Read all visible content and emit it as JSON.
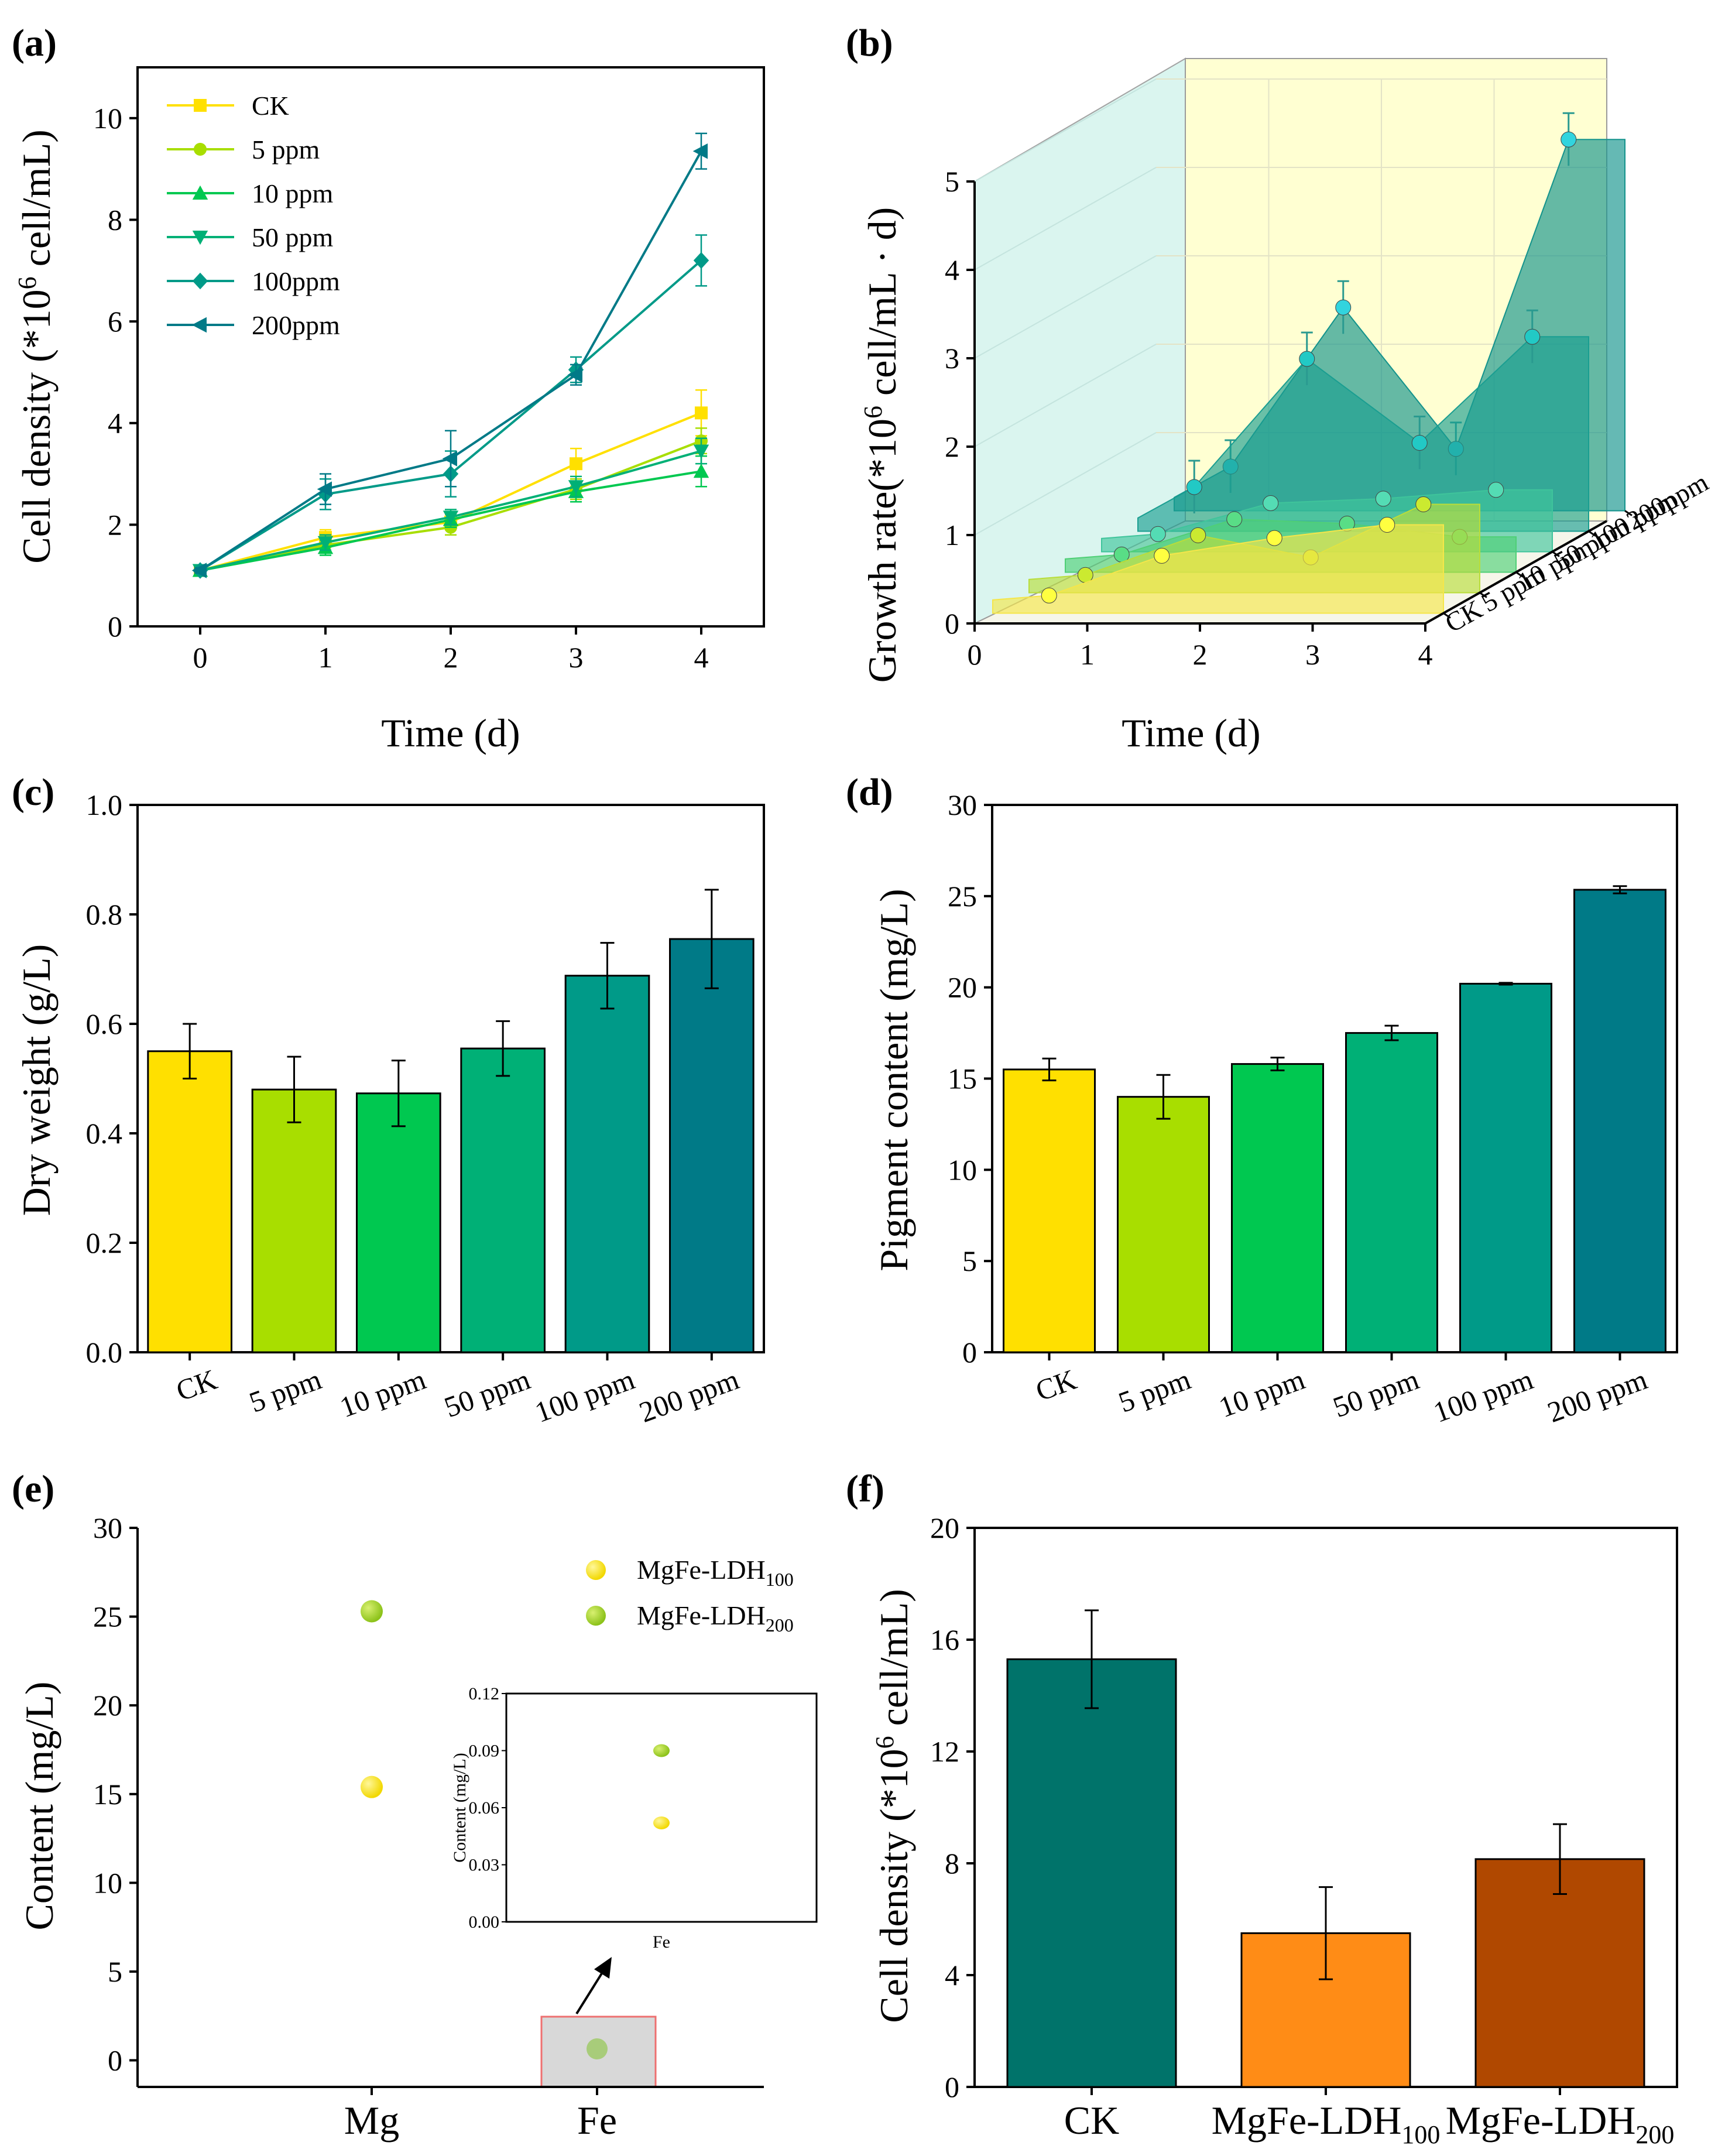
{
  "colors": {
    "CK": "#ffe000",
    "p5": "#a8de00",
    "p10": "#00c850",
    "p50": "#00b076",
    "p100": "#009a88",
    "p200": "#007a87",
    "f_ck": "#00736a",
    "f_100": "#ff8c16",
    "f_200": "#b04800"
  },
  "chart_data": [
    {
      "panel": "(a)",
      "type": "line",
      "xlabel": "Time (d)",
      "ylabel_parts": [
        "Cell density (*10",
        "6",
        " cell/mL)"
      ],
      "x": [
        0,
        1,
        2,
        3,
        4
      ],
      "xticks": [
        "0",
        "1",
        "2",
        "3",
        "4"
      ],
      "yticks": [
        "0",
        "2",
        "4",
        "6",
        "8",
        "10"
      ],
      "xlim": [
        -0.5,
        4.5
      ],
      "ylim": [
        0,
        11
      ],
      "series": [
        {
          "name": "CK",
          "marker": "square",
          "values": [
            1.1,
            1.75,
            2.05,
            3.2,
            4.2
          ],
          "err": [
            0.05,
            0.15,
            0.15,
            0.3,
            0.45
          ]
        },
        {
          "name": "5 ppm",
          "marker": "circle",
          "values": [
            1.1,
            1.6,
            1.95,
            2.7,
            3.65
          ],
          "err": [
            0.05,
            0.15,
            0.15,
            0.2,
            0.25
          ]
        },
        {
          "name": "10 ppm",
          "marker": "triangle-up",
          "values": [
            1.1,
            1.55,
            2.1,
            2.65,
            3.05
          ],
          "err": [
            0.05,
            0.15,
            0.15,
            0.2,
            0.3
          ]
        },
        {
          "name": "50 ppm",
          "marker": "triangle-down",
          "values": [
            1.1,
            1.65,
            2.15,
            2.75,
            3.45
          ],
          "err": [
            0.05,
            0.15,
            0.15,
            0.2,
            0.25
          ]
        },
        {
          "name": "100ppm",
          "marker": "diamond",
          "values": [
            1.1,
            2.6,
            3.0,
            5.05,
            7.2
          ],
          "err": [
            0.05,
            0.3,
            0.45,
            0.25,
            0.5
          ]
        },
        {
          "name": "200ppm",
          "marker": "triangle-left",
          "values": [
            1.1,
            2.7,
            3.3,
            4.95,
            9.35
          ],
          "err": [
            0.05,
            0.3,
            0.55,
            0.2,
            0.35
          ]
        }
      ]
    },
    {
      "panel": "(b)",
      "type": "area",
      "subtype": "3d-waterfall",
      "xlabel": "Time (d)",
      "ylabel_parts": [
        "Growth rate(*10",
        "6",
        " cell/mL · d)"
      ],
      "xticks": [
        "0",
        "1",
        "2",
        "3",
        "4"
      ],
      "yticks": [
        "0",
        "1",
        "2",
        "3",
        "4",
        "5"
      ],
      "depth_labels": [
        "CK",
        "5 ppm",
        "10 ppm",
        "50 ppm",
        "100 ppm",
        "200ppm"
      ],
      "x": [
        0.5,
        1.5,
        2.5,
        3.5
      ],
      "ylim": [
        0,
        5
      ],
      "series": [
        {
          "name": "CK",
          "values": [
            0.2,
            0.65,
            0.85,
            1.0
          ]
        },
        {
          "name": "5 ppm",
          "values": [
            0.2,
            0.65,
            0.4,
            1.0
          ]
        },
        {
          "name": "10 ppm",
          "values": [
            0.2,
            0.6,
            0.55,
            0.4
          ]
        },
        {
          "name": "50 ppm",
          "values": [
            0.2,
            0.55,
            0.6,
            0.7
          ]
        },
        {
          "name": "100ppm",
          "values": [
            0.5,
            1.95,
            1.0,
            2.2
          ]
        },
        {
          "name": "200ppm",
          "values": [
            0.5,
            2.3,
            0.7,
            4.2
          ]
        }
      ]
    },
    {
      "panel": "(c)",
      "type": "bar",
      "ylabel": "Dry weight (g/L)",
      "categories": [
        "CK",
        "5 ppm",
        "10 ppm",
        "50 ppm",
        "100 ppm",
        "200 ppm"
      ],
      "values": [
        0.55,
        0.48,
        0.473,
        0.555,
        0.688,
        0.755
      ],
      "err": [
        0.05,
        0.06,
        0.06,
        0.05,
        0.06,
        0.09
      ],
      "yticks": [
        "0.0",
        "0.2",
        "0.4",
        "0.6",
        "0.8",
        "1.0"
      ],
      "ylim": [
        0,
        1.0
      ]
    },
    {
      "panel": "(d)",
      "type": "bar",
      "ylabel": "Pigment content (mg/L)",
      "categories": [
        "CK",
        "5 ppm",
        "10 ppm",
        "50 ppm",
        "100 ppm",
        "200 ppm"
      ],
      "values": [
        15.5,
        14.0,
        15.8,
        17.5,
        20.2,
        25.35
      ],
      "err": [
        0.6,
        1.2,
        0.35,
        0.4,
        0.05,
        0.2
      ],
      "yticks": [
        "0",
        "5",
        "10",
        "15",
        "20",
        "25",
        "30"
      ],
      "ylim": [
        0,
        30
      ]
    },
    {
      "panel": "(e)",
      "type": "scatter",
      "ylabel": "Content (mg/L)",
      "categories": [
        "Mg",
        "Fe"
      ],
      "yticks": [
        "0",
        "5",
        "10",
        "15",
        "20",
        "25",
        "30"
      ],
      "ylim": [
        -1.5,
        30
      ],
      "series": [
        {
          "name_main": "MgFe-LDH",
          "name_sub": "100",
          "values": [
            15.4,
            0.052
          ]
        },
        {
          "name_main": "MgFe-LDH",
          "name_sub": "200",
          "values": [
            25.3,
            0.09
          ]
        }
      ],
      "inset": {
        "ylabel": "Content (mg/L)",
        "xtick": "Fe",
        "yticks": [
          "0.00",
          "0.03",
          "0.06",
          "0.09",
          "0.12"
        ],
        "ylim": [
          0,
          0.12
        ]
      }
    },
    {
      "panel": "(f)",
      "type": "bar",
      "ylabel_parts": [
        "Cell density (*10",
        "6",
        " cell/mL)"
      ],
      "categories": [
        {
          "main": "CK",
          "sub": ""
        },
        {
          "main": "MgFe-LDH",
          "sub": "100"
        },
        {
          "main": "MgFe-LDH",
          "sub": "200"
        }
      ],
      "values": [
        15.3,
        5.5,
        8.15
      ],
      "err": [
        1.75,
        1.65,
        1.25
      ],
      "yticks": [
        "0",
        "4",
        "8",
        "12",
        "16",
        "20"
      ],
      "ylim": [
        0,
        20
      ]
    }
  ]
}
